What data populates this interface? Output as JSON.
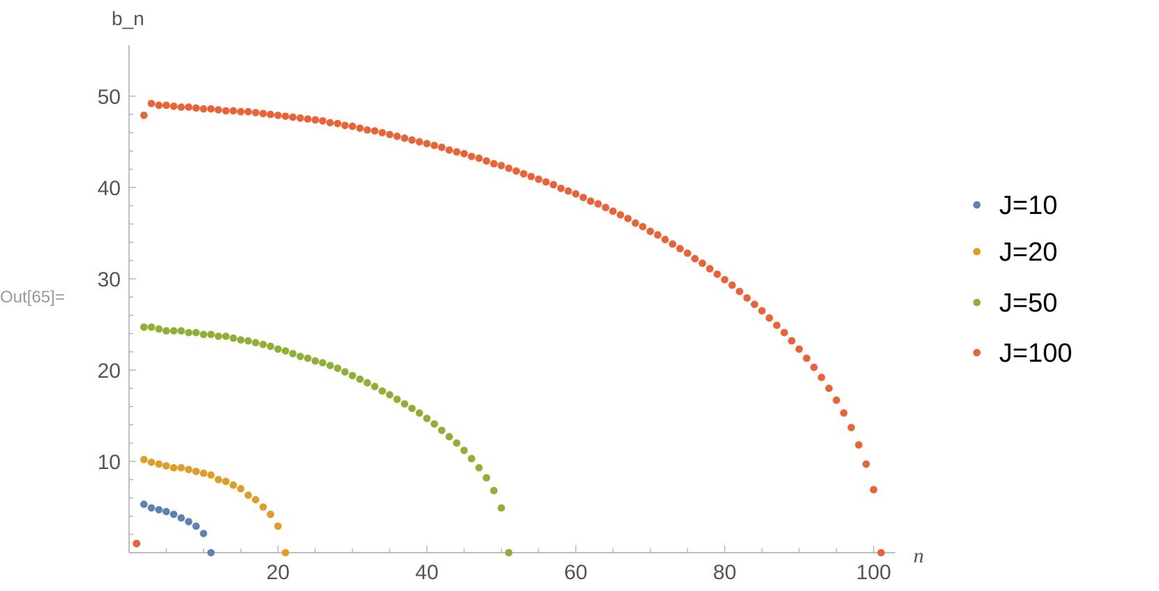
{
  "cell_label": "Out[65]=",
  "chart_data": {
    "type": "scatter",
    "xlabel": "n",
    "ylabel": "b_n",
    "xlim": [
      0,
      103
    ],
    "ylim": [
      0,
      52.5
    ],
    "x_ticks": [
      20,
      40,
      60,
      80,
      100
    ],
    "y_ticks": [
      10,
      20,
      30,
      40,
      50
    ],
    "grid": false,
    "legend_position": "right",
    "series": [
      {
        "name": "J=10",
        "color": "#5e81b5",
        "points": [
          [
            1,
            1.0
          ],
          [
            2,
            5.3
          ],
          [
            3,
            4.9
          ],
          [
            4,
            4.7
          ],
          [
            5,
            4.5
          ],
          [
            6,
            4.2
          ],
          [
            7,
            3.8
          ],
          [
            8,
            3.4
          ],
          [
            9,
            2.9
          ],
          [
            10,
            2.1
          ],
          [
            11,
            0.0
          ]
        ]
      },
      {
        "name": "J=20",
        "color": "#e19c24",
        "points": [
          [
            1,
            1.0
          ],
          [
            2,
            10.2
          ],
          [
            3,
            9.9
          ],
          [
            4,
            9.7
          ],
          [
            5,
            9.5
          ],
          [
            6,
            9.3
          ],
          [
            7,
            9.3
          ],
          [
            8,
            9.1
          ],
          [
            9,
            8.9
          ],
          [
            10,
            8.7
          ],
          [
            11,
            8.5
          ],
          [
            12,
            8.0
          ],
          [
            13,
            7.8
          ],
          [
            14,
            7.4
          ],
          [
            15,
            7.0
          ],
          [
            16,
            6.3
          ],
          [
            17,
            5.8
          ],
          [
            18,
            5.0
          ],
          [
            19,
            4.2
          ],
          [
            20,
            2.9
          ],
          [
            21,
            0.0
          ]
        ]
      },
      {
        "name": "J=50",
        "color": "#8fb032",
        "points": [
          [
            1,
            1.0
          ],
          [
            2,
            24.7
          ],
          [
            3,
            24.7
          ],
          [
            4,
            24.5
          ],
          [
            5,
            24.3
          ],
          [
            6,
            24.3
          ],
          [
            7,
            24.3
          ],
          [
            8,
            24.1
          ],
          [
            9,
            24.1
          ],
          [
            10,
            23.9
          ],
          [
            11,
            23.9
          ],
          [
            12,
            23.7
          ],
          [
            13,
            23.7
          ],
          [
            14,
            23.5
          ],
          [
            15,
            23.3
          ],
          [
            16,
            23.2
          ],
          [
            17,
            23.0
          ],
          [
            18,
            22.8
          ],
          [
            19,
            22.6
          ],
          [
            20,
            22.3
          ],
          [
            21,
            22.1
          ],
          [
            22,
            21.8
          ],
          [
            23,
            21.5
          ],
          [
            24,
            21.3
          ],
          [
            25,
            21.0
          ],
          [
            26,
            20.8
          ],
          [
            27,
            20.5
          ],
          [
            28,
            20.2
          ],
          [
            29,
            19.8
          ],
          [
            30,
            19.4
          ],
          [
            31,
            19.0
          ],
          [
            32,
            18.6
          ],
          [
            33,
            18.2
          ],
          [
            34,
            17.7
          ],
          [
            35,
            17.3
          ],
          [
            36,
            16.8
          ],
          [
            37,
            16.3
          ],
          [
            38,
            15.8
          ],
          [
            39,
            15.3
          ],
          [
            40,
            14.7
          ],
          [
            41,
            14.1
          ],
          [
            42,
            13.4
          ],
          [
            43,
            12.7
          ],
          [
            44,
            12.0
          ],
          [
            45,
            11.2
          ],
          [
            46,
            10.3
          ],
          [
            47,
            9.3
          ],
          [
            48,
            8.2
          ],
          [
            49,
            6.8
          ],
          [
            50,
            4.9
          ],
          [
            51,
            0.0
          ]
        ]
      },
      {
        "name": "J=100",
        "color": "#eb6235",
        "points": [
          [
            1,
            1.0
          ],
          [
            2,
            47.9
          ],
          [
            3,
            49.2
          ],
          [
            4,
            49.0
          ],
          [
            5,
            49.0
          ],
          [
            6,
            48.9
          ],
          [
            7,
            48.8
          ],
          [
            8,
            48.8
          ],
          [
            9,
            48.7
          ],
          [
            10,
            48.6
          ],
          [
            11,
            48.6
          ],
          [
            12,
            48.5
          ],
          [
            13,
            48.4
          ],
          [
            14,
            48.4
          ],
          [
            15,
            48.3
          ],
          [
            16,
            48.3
          ],
          [
            17,
            48.2
          ],
          [
            18,
            48.1
          ],
          [
            19,
            48.0
          ],
          [
            20,
            47.9
          ],
          [
            21,
            47.8
          ],
          [
            22,
            47.7
          ],
          [
            23,
            47.6
          ],
          [
            24,
            47.5
          ],
          [
            25,
            47.4
          ],
          [
            26,
            47.3
          ],
          [
            27,
            47.1
          ],
          [
            28,
            47.0
          ],
          [
            29,
            46.8
          ],
          [
            30,
            46.7
          ],
          [
            31,
            46.5
          ],
          [
            32,
            46.3
          ],
          [
            33,
            46.2
          ],
          [
            34,
            46.0
          ],
          [
            35,
            45.8
          ],
          [
            36,
            45.6
          ],
          [
            37,
            45.4
          ],
          [
            38,
            45.2
          ],
          [
            39,
            45.0
          ],
          [
            40,
            44.8
          ],
          [
            41,
            44.6
          ],
          [
            42,
            44.4
          ],
          [
            43,
            44.1
          ],
          [
            44,
            43.9
          ],
          [
            45,
            43.7
          ],
          [
            46,
            43.4
          ],
          [
            47,
            43.2
          ],
          [
            48,
            42.9
          ],
          [
            49,
            42.6
          ],
          [
            50,
            42.4
          ],
          [
            51,
            42.1
          ],
          [
            52,
            41.8
          ],
          [
            53,
            41.5
          ],
          [
            54,
            41.2
          ],
          [
            55,
            40.9
          ],
          [
            56,
            40.6
          ],
          [
            57,
            40.3
          ],
          [
            58,
            39.9
          ],
          [
            59,
            39.6
          ],
          [
            60,
            39.3
          ],
          [
            61,
            38.9
          ],
          [
            62,
            38.5
          ],
          [
            63,
            38.2
          ],
          [
            64,
            37.8
          ],
          [
            65,
            37.4
          ],
          [
            66,
            37.0
          ],
          [
            67,
            36.6
          ],
          [
            68,
            36.1
          ],
          [
            69,
            35.7
          ],
          [
            70,
            35.2
          ],
          [
            71,
            34.8
          ],
          [
            72,
            34.3
          ],
          [
            73,
            33.8
          ],
          [
            74,
            33.3
          ],
          [
            75,
            32.8
          ],
          [
            76,
            32.2
          ],
          [
            77,
            31.7
          ],
          [
            78,
            31.1
          ],
          [
            79,
            30.5
          ],
          [
            80,
            29.9
          ],
          [
            81,
            29.3
          ],
          [
            82,
            28.6
          ],
          [
            83,
            27.9
          ],
          [
            84,
            27.2
          ],
          [
            85,
            26.5
          ],
          [
            86,
            25.7
          ],
          [
            87,
            24.9
          ],
          [
            88,
            24.1
          ],
          [
            89,
            23.2
          ],
          [
            90,
            22.3
          ],
          [
            91,
            21.3
          ],
          [
            92,
            20.3
          ],
          [
            93,
            19.2
          ],
          [
            94,
            18.0
          ],
          [
            95,
            16.7
          ],
          [
            96,
            15.3
          ],
          [
            97,
            13.7
          ],
          [
            98,
            11.8
          ],
          [
            99,
            9.7
          ],
          [
            100,
            6.9
          ],
          [
            101,
            0.0
          ]
        ]
      }
    ]
  }
}
